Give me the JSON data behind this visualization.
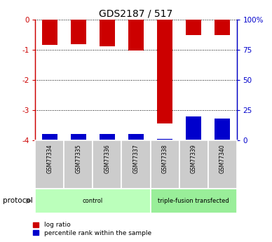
{
  "title": "GDS2187 / 517",
  "samples": [
    "GSM77334",
    "GSM77335",
    "GSM77336",
    "GSM77337",
    "GSM77338",
    "GSM77339",
    "GSM77340"
  ],
  "log_ratio": [
    -0.85,
    -0.82,
    -0.88,
    -1.02,
    -3.45,
    -0.52,
    -0.52
  ],
  "percentile_rank": [
    5.5,
    5.5,
    5.0,
    5.5,
    1.0,
    20.0,
    18.0
  ],
  "ylim_left": [
    -4,
    0
  ],
  "ylim_right": [
    0,
    100
  ],
  "yticks_left": [
    0,
    -1,
    -2,
    -3,
    -4
  ],
  "yticks_right": [
    0,
    25,
    50,
    75,
    100
  ],
  "ytick_labels_right": [
    "0",
    "25",
    "50",
    "75",
    "100%"
  ],
  "ytick_labels_left": [
    "0",
    "-1",
    "-2",
    "-3",
    "-4"
  ],
  "groups": [
    {
      "label": "control",
      "indices": [
        0,
        1,
        2,
        3
      ],
      "color": "#bbffbb"
    },
    {
      "label": "triple-fusion transfected",
      "indices": [
        4,
        5,
        6
      ],
      "color": "#99ee99"
    }
  ],
  "bar_color_red": "#cc0000",
  "bar_color_blue": "#0000cc",
  "bar_width": 0.55,
  "protocol_label": "protocol",
  "legend_items": [
    "log ratio",
    "percentile rank within the sample"
  ],
  "left_axis_color": "#cc0000",
  "right_axis_color": "#0000cc",
  "sample_box_color": "#cccccc",
  "spine_color": "#888888"
}
